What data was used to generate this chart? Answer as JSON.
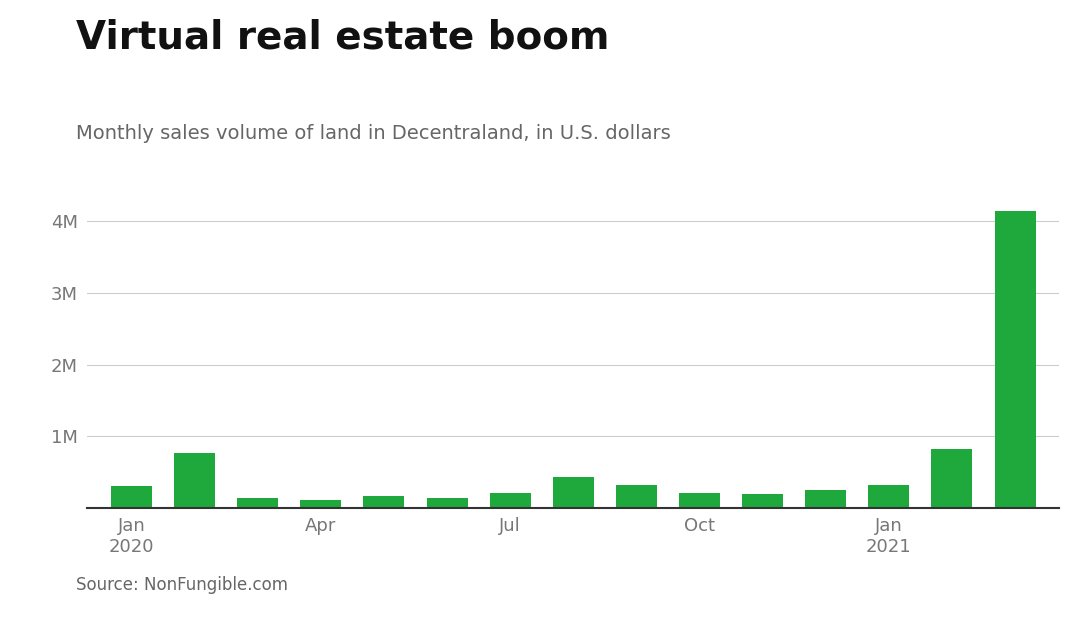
{
  "title": "Virtual real estate boom",
  "subtitle": "Monthly sales volume of land in Decentraland, in U.S. dollars",
  "source": "Source: NonFungible.com",
  "bar_color": "#1fa83c",
  "background_color": "#ffffff",
  "tick_labels": [
    "Jan\n2020",
    "Apr",
    "Jul",
    "Oct",
    "Jan\n2021"
  ],
  "tick_positions": [
    0,
    3,
    6,
    9,
    12
  ],
  "values": [
    300000,
    760000,
    130000,
    100000,
    160000,
    130000,
    200000,
    430000,
    320000,
    200000,
    190000,
    240000,
    310000,
    820000,
    4150000
  ],
  "ylim": [
    0,
    4500000
  ],
  "yticks": [
    0,
    1000000,
    2000000,
    3000000,
    4000000
  ],
  "ytick_labels": [
    "",
    "1M",
    "2M",
    "3M",
    "4M"
  ],
  "title_fontsize": 28,
  "subtitle_fontsize": 14,
  "source_fontsize": 12,
  "axis_fontsize": 13
}
